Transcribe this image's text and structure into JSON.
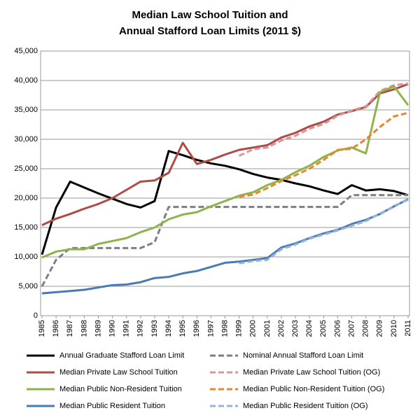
{
  "chart_data": {
    "type": "line",
    "title": [
      "Median Law School Tuition and",
      "Annual Stafford Loan Limits (2011 $)"
    ],
    "categories": [
      "1985",
      "1986",
      "1987",
      "1988",
      "1989",
      "1990",
      "1991",
      "1992",
      "1993",
      "1994",
      "1995",
      "1996",
      "1997",
      "1998",
      "1999",
      "2000",
      "2001",
      "2002",
      "2003",
      "2004",
      "2005",
      "2006",
      "2007",
      "2008",
      "2009",
      "2010",
      "2011"
    ],
    "ylim": [
      0,
      45000
    ],
    "yticks": [
      0,
      {
        "value": 5000,
        "label": "5,000"
      },
      {
        "value": 10000,
        "label": "10,000"
      },
      {
        "value": 15000,
        "label": "15,000"
      },
      {
        "value": 20000,
        "label": "20,000"
      },
      {
        "value": 25000,
        "label": "25,000"
      },
      {
        "value": 30000,
        "label": "30,000"
      },
      {
        "value": 35000,
        "label": "35,000"
      },
      {
        "value": 40000,
        "label": "40,000"
      },
      {
        "value": 45000,
        "label": "45,000"
      }
    ],
    "grid": true,
    "legend": "bottom",
    "series": [
      {
        "name": "Annual Graduate Stafford Loan Limit",
        "color": "#000000",
        "dash": false,
        "values": [
          10400,
          18400,
          22800,
          21800,
          20800,
          19900,
          19000,
          18400,
          19500,
          28000,
          27300,
          26500,
          25900,
          25500,
          24900,
          24100,
          23500,
          23100,
          22500,
          22000,
          21300,
          20700,
          22200,
          21300,
          21500,
          21200,
          20500
        ]
      },
      {
        "name": "Nominal Annual Stafford Loan Limit",
        "color": "#7f7f7f",
        "dash": true,
        "values": [
          5000,
          9500,
          11500,
          11500,
          11500,
          11500,
          11500,
          11500,
          12500,
          18500,
          18500,
          18500,
          18500,
          18500,
          18500,
          18500,
          18500,
          18500,
          18500,
          18500,
          18500,
          18500,
          20500,
          20500,
          20500,
          20500,
          20500
        ]
      },
      {
        "name": "Median Private Law School Tuition",
        "color": "#b04a47",
        "dash": false,
        "values": [
          15400,
          16500,
          17300,
          18200,
          19000,
          20000,
          21400,
          22800,
          23000,
          24300,
          29400,
          25800,
          26500,
          27400,
          28200,
          28600,
          29000,
          30300,
          31100,
          32200,
          33000,
          34200,
          34800,
          35500,
          37800,
          38500,
          39400
        ]
      },
      {
        "name": "Median Private Law School Tuition (OG)",
        "color": "#d99694",
        "dash": true,
        "values": [
          null,
          null,
          null,
          null,
          null,
          null,
          null,
          null,
          null,
          null,
          null,
          null,
          null,
          null,
          27200,
          28300,
          28600,
          29800,
          30600,
          31800,
          32600,
          34000,
          34900,
          35600,
          38200,
          39200,
          39500
        ]
      },
      {
        "name": "Median Public Non-Resident Tuition",
        "color": "#8db44a",
        "dash": false,
        "values": [
          9900,
          10900,
          11300,
          11300,
          12200,
          12700,
          13200,
          14200,
          15000,
          16400,
          17200,
          17600,
          18600,
          19500,
          20400,
          21000,
          22200,
          23100,
          24400,
          25500,
          27000,
          28100,
          28600,
          27600,
          38000,
          39000,
          35800
        ]
      },
      {
        "name": "Median Public Non-Resident Tuition (OG)",
        "color": "#e9862c",
        "dash": true,
        "values": [
          null,
          null,
          null,
          null,
          null,
          null,
          null,
          null,
          null,
          null,
          null,
          null,
          null,
          null,
          20200,
          20600,
          21700,
          22900,
          23900,
          25000,
          26500,
          28200,
          28400,
          30000,
          32100,
          33900,
          34500
        ]
      },
      {
        "name": "Median Public Resident Tuition",
        "color": "#4a7ab5",
        "dash": false,
        "values": [
          3800,
          4000,
          4200,
          4400,
          4800,
          5200,
          5300,
          5700,
          6400,
          6600,
          7200,
          7600,
          8300,
          9000,
          9200,
          9500,
          9800,
          11600,
          12300,
          13200,
          14000,
          14600,
          15600,
          16300,
          17300,
          18600,
          19800
        ]
      },
      {
        "name": "Median Public Resident Tuition (OG)",
        "color": "#95b3d7",
        "dash": true,
        "values": [
          null,
          null,
          null,
          null,
          null,
          null,
          null,
          null,
          null,
          null,
          null,
          null,
          null,
          null,
          8900,
          9300,
          9500,
          11300,
          12100,
          13100,
          13800,
          14500,
          15300,
          16100,
          17400,
          18500,
          19900
        ]
      }
    ]
  }
}
